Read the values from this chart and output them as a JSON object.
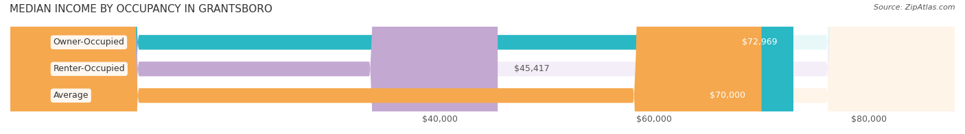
{
  "title": "MEDIAN INCOME BY OCCUPANCY IN GRANTSBORO",
  "source": "Source: ZipAtlas.com",
  "categories": [
    "Owner-Occupied",
    "Renter-Occupied",
    "Average"
  ],
  "values": [
    72969,
    45417,
    70000
  ],
  "labels": [
    "$72,969",
    "$45,417",
    "$70,000"
  ],
  "bar_colors": [
    "#29b8c4",
    "#c3a8d1",
    "#f5a84e"
  ],
  "bar_bg_colors": [
    "#e8f8f9",
    "#f3eef7",
    "#fef4e8"
  ],
  "xmin": 0,
  "xmax": 88000,
  "xticks": [
    40000,
    60000,
    80000
  ],
  "xticklabels": [
    "$40,000",
    "$60,000",
    "$80,000"
  ],
  "title_fontsize": 11,
  "source_fontsize": 8,
  "label_fontsize": 9,
  "tick_fontsize": 9,
  "bar_height": 0.55,
  "background_color": "#ffffff"
}
